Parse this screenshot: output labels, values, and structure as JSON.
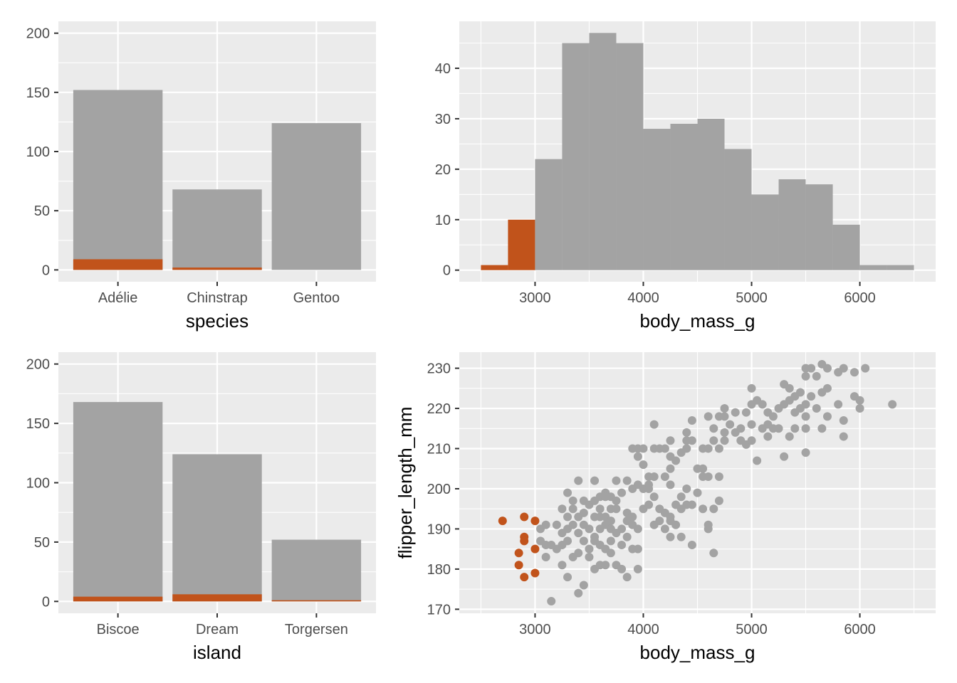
{
  "colors": {
    "panel_bg": "#EBEBEB",
    "grid": "#FFFFFF",
    "base": "#A3A3A3",
    "highlight": "#C1531B"
  },
  "chart_data": [
    {
      "type": "bar",
      "stacked": true,
      "xlabel": "species",
      "ylabel": "",
      "categories": [
        "Adélie",
        "Chinstrap",
        "Gentoo"
      ],
      "series": [
        {
          "values": [
            152,
            68,
            124
          ],
          "color": "#A3A3A3"
        },
        {
          "values": [
            9,
            2,
            0
          ],
          "color": "#C1531B"
        }
      ],
      "yticks": [
        "0",
        "50",
        "100",
        "150",
        "200"
      ],
      "ylim": [
        -10,
        210
      ],
      "grid": true
    },
    {
      "type": "bar",
      "subtype": "histogram",
      "xlabel": "body_mass_g",
      "ylabel": "",
      "bin_width": 250,
      "bins_start": [
        2500,
        2750,
        3000,
        3250,
        3500,
        3750,
        4000,
        4250,
        4500,
        4750,
        5000,
        5250,
        5500,
        5750,
        6000,
        6250
      ],
      "counts": [
        1,
        10,
        22,
        45,
        47,
        45,
        28,
        29,
        30,
        24,
        15,
        18,
        17,
        9,
        1,
        1
      ],
      "highlighted_bins": [
        true,
        true,
        false,
        false,
        false,
        false,
        false,
        false,
        false,
        false,
        false,
        false,
        false,
        false,
        false,
        false
      ],
      "xticks": [
        "3000",
        "4000",
        "5000",
        "6000"
      ],
      "yticks": [
        "0",
        "10",
        "20",
        "30",
        "40"
      ],
      "xlim": [
        2300,
        6700
      ],
      "ylim": [
        -2.3,
        49.3
      ],
      "grid": true
    },
    {
      "type": "bar",
      "stacked": true,
      "xlabel": "island",
      "ylabel": "",
      "categories": [
        "Biscoe",
        "Dream",
        "Torgersen"
      ],
      "series": [
        {
          "values": [
            168,
            124,
            52
          ],
          "color": "#A3A3A3"
        },
        {
          "values": [
            4,
            6,
            1
          ],
          "color": "#C1531B"
        }
      ],
      "yticks": [
        "0",
        "50",
        "100",
        "150",
        "200"
      ],
      "ylim": [
        -10,
        210
      ],
      "grid": true
    },
    {
      "type": "scatter",
      "xlabel": "body_mass_g",
      "ylabel": "flipper_length_mm",
      "xticks": [
        "3000",
        "4000",
        "5000",
        "6000"
      ],
      "yticks": [
        "170",
        "180",
        "190",
        "200",
        "210",
        "220",
        "230"
      ],
      "xlim": [
        2300,
        6700
      ],
      "ylim": [
        169,
        234
      ],
      "grid": true,
      "highlighted_points": [
        [
          2700,
          192
        ],
        [
          2900,
          193
        ],
        [
          3000,
          192
        ],
        [
          2900,
          188
        ],
        [
          2900,
          187
        ],
        [
          3000,
          185
        ],
        [
          2850,
          184
        ],
        [
          2850,
          181
        ],
        [
          3000,
          179
        ],
        [
          2900,
          178
        ]
      ],
      "points": [
        [
          3150,
          172
        ],
        [
          3400,
          174
        ],
        [
          3450,
          176
        ],
        [
          3300,
          178
        ],
        [
          3950,
          180
        ],
        [
          3850,
          178
        ],
        [
          3550,
          180
        ],
        [
          3600,
          181
        ],
        [
          3650,
          181
        ],
        [
          3750,
          181
        ],
        [
          3800,
          180
        ],
        [
          3250,
          181
        ],
        [
          3100,
          183
        ],
        [
          3350,
          183
        ],
        [
          3500,
          183
        ],
        [
          3400,
          184
        ],
        [
          3700,
          184
        ],
        [
          3900,
          185
        ],
        [
          3950,
          185
        ],
        [
          3200,
          185
        ],
        [
          3250,
          186
        ],
        [
          3150,
          186
        ],
        [
          3100,
          186
        ],
        [
          3300,
          187
        ],
        [
          3450,
          187
        ],
        [
          3550,
          187
        ],
        [
          3600,
          186
        ],
        [
          3650,
          185
        ],
        [
          3700,
          187
        ],
        [
          4250,
          188
        ],
        [
          4350,
          188
        ],
        [
          4450,
          186
        ],
        [
          4650,
          184
        ],
        [
          4600,
          190
        ],
        [
          4600,
          191
        ],
        [
          3050,
          187
        ],
        [
          3050,
          190
        ],
        [
          3100,
          191
        ],
        [
          3200,
          191
        ],
        [
          3250,
          189
        ],
        [
          3300,
          190
        ],
        [
          3350,
          191
        ],
        [
          3400,
          189
        ],
        [
          3500,
          190
        ],
        [
          3550,
          188
        ],
        [
          3600,
          190
        ],
        [
          3650,
          191
        ],
        [
          3700,
          190
        ],
        [
          3750,
          189
        ],
        [
          3800,
          190
        ],
        [
          3850,
          192
        ],
        [
          3900,
          191
        ],
        [
          3950,
          190
        ],
        [
          4100,
          191
        ],
        [
          4150,
          192
        ],
        [
          4200,
          190
        ],
        [
          4300,
          191
        ],
        [
          4250,
          192
        ],
        [
          3300,
          193
        ],
        [
          3400,
          193
        ],
        [
          3450,
          194
        ],
        [
          3550,
          193
        ],
        [
          3600,
          193
        ],
        [
          3650,
          193
        ],
        [
          3700,
          195
        ],
        [
          3750,
          195
        ],
        [
          3850,
          194
        ],
        [
          3900,
          193
        ],
        [
          4000,
          195
        ],
        [
          4050,
          196
        ],
        [
          4150,
          195
        ],
        [
          4200,
          194
        ],
        [
          4250,
          193
        ],
        [
          4300,
          196
        ],
        [
          4350,
          195
        ],
        [
          4400,
          196
        ],
        [
          4450,
          196
        ],
        [
          4550,
          195
        ],
        [
          4650,
          195
        ],
        [
          4700,
          197
        ],
        [
          3250,
          195
        ],
        [
          3350,
          195
        ],
        [
          3450,
          197
        ],
        [
          3500,
          196
        ],
        [
          3550,
          197
        ],
        [
          3600,
          198
        ],
        [
          3650,
          199
        ],
        [
          3700,
          198
        ],
        [
          3750,
          197
        ],
        [
          3800,
          199
        ],
        [
          3900,
          200
        ],
        [
          3950,
          201
        ],
        [
          4000,
          200
        ],
        [
          4050,
          201
        ],
        [
          4100,
          198
        ],
        [
          4250,
          201
        ],
        [
          4350,
          198
        ],
        [
          4400,
          200
        ],
        [
          4500,
          199
        ],
        [
          4600,
          203
        ],
        [
          4700,
          203
        ],
        [
          3300,
          199
        ],
        [
          3350,
          197
        ],
        [
          3400,
          202
        ],
        [
          3550,
          202
        ],
        [
          3850,
          202
        ],
        [
          4050,
          203
        ],
        [
          4100,
          203
        ],
        [
          4200,
          203
        ],
        [
          4250,
          205
        ],
        [
          4500,
          205
        ],
        [
          4550,
          205
        ],
        [
          4550,
          203
        ],
        [
          3750,
          202
        ],
        [
          3650,
          198
        ],
        [
          3900,
          210
        ],
        [
          3950,
          210
        ],
        [
          3950,
          208
        ],
        [
          4000,
          210
        ],
        [
          4100,
          210
        ],
        [
          4150,
          210
        ],
        [
          4200,
          210
        ],
        [
          4250,
          208
        ],
        [
          4300,
          207
        ],
        [
          4400,
          212
        ],
        [
          4450,
          212
        ],
        [
          4400,
          210
        ],
        [
          4350,
          209
        ],
        [
          4550,
          210
        ],
        [
          4600,
          210
        ],
        [
          4650,
          212
        ],
        [
          4700,
          210
        ],
        [
          4750,
          212
        ],
        [
          4650,
          215
        ],
        [
          4750,
          214
        ],
        [
          4800,
          216
        ],
        [
          4850,
          214
        ],
        [
          4900,
          215
        ],
        [
          4900,
          212
        ],
        [
          4950,
          211
        ],
        [
          5000,
          212
        ],
        [
          4700,
          218
        ],
        [
          4750,
          218
        ],
        [
          4750,
          220
        ],
        [
          4600,
          218
        ],
        [
          4100,
          216
        ],
        [
          4450,
          217
        ],
        [
          4400,
          214
        ],
        [
          4250,
          212
        ],
        [
          4850,
          219
        ],
        [
          4950,
          219
        ],
        [
          5000,
          221
        ],
        [
          5050,
          222
        ],
        [
          5100,
          221
        ],
        [
          5150,
          219
        ],
        [
          5200,
          218
        ],
        [
          5250,
          220
        ],
        [
          5300,
          221
        ],
        [
          5350,
          222
        ],
        [
          5400,
          219
        ],
        [
          5450,
          220
        ],
        [
          5500,
          221
        ],
        [
          5550,
          223
        ],
        [
          5500,
          218
        ],
        [
          5600,
          220
        ],
        [
          5650,
          224
        ],
        [
          5700,
          225
        ],
        [
          5800,
          221
        ],
        [
          5300,
          226
        ],
        [
          5350,
          225
        ],
        [
          5400,
          223
        ],
        [
          5450,
          224
        ],
        [
          5500,
          228
        ],
        [
          5500,
          230
        ],
        [
          5550,
          230
        ],
        [
          5600,
          228
        ],
        [
          5650,
          231
        ],
        [
          5700,
          230
        ],
        [
          5800,
          229
        ],
        [
          5850,
          230
        ],
        [
          5950,
          229
        ],
        [
          6050,
          230
        ],
        [
          5950,
          223
        ],
        [
          6000,
          222
        ],
        [
          6000,
          220
        ],
        [
          5850,
          217
        ],
        [
          5850,
          213
        ],
        [
          5650,
          215
        ],
        [
          5500,
          215
        ],
        [
          5400,
          215
        ],
        [
          5350,
          213
        ],
        [
          5250,
          215
        ],
        [
          5200,
          215
        ],
        [
          5150,
          216
        ],
        [
          5100,
          215
        ],
        [
          5000,
          216
        ],
        [
          5000,
          225
        ],
        [
          5300,
          208
        ],
        [
          5500,
          209
        ],
        [
          5050,
          207
        ],
        [
          6300,
          221
        ],
        [
          5700,
          218
        ],
        [
          5150,
          213
        ],
        [
          4050,
          200
        ],
        [
          3450,
          191
        ],
        [
          3500,
          185
        ],
        [
          3800,
          186
        ],
        [
          3850,
          188
        ],
        [
          3700,
          192
        ],
        [
          3600,
          195
        ],
        [
          4000,
          206
        ]
      ]
    }
  ]
}
